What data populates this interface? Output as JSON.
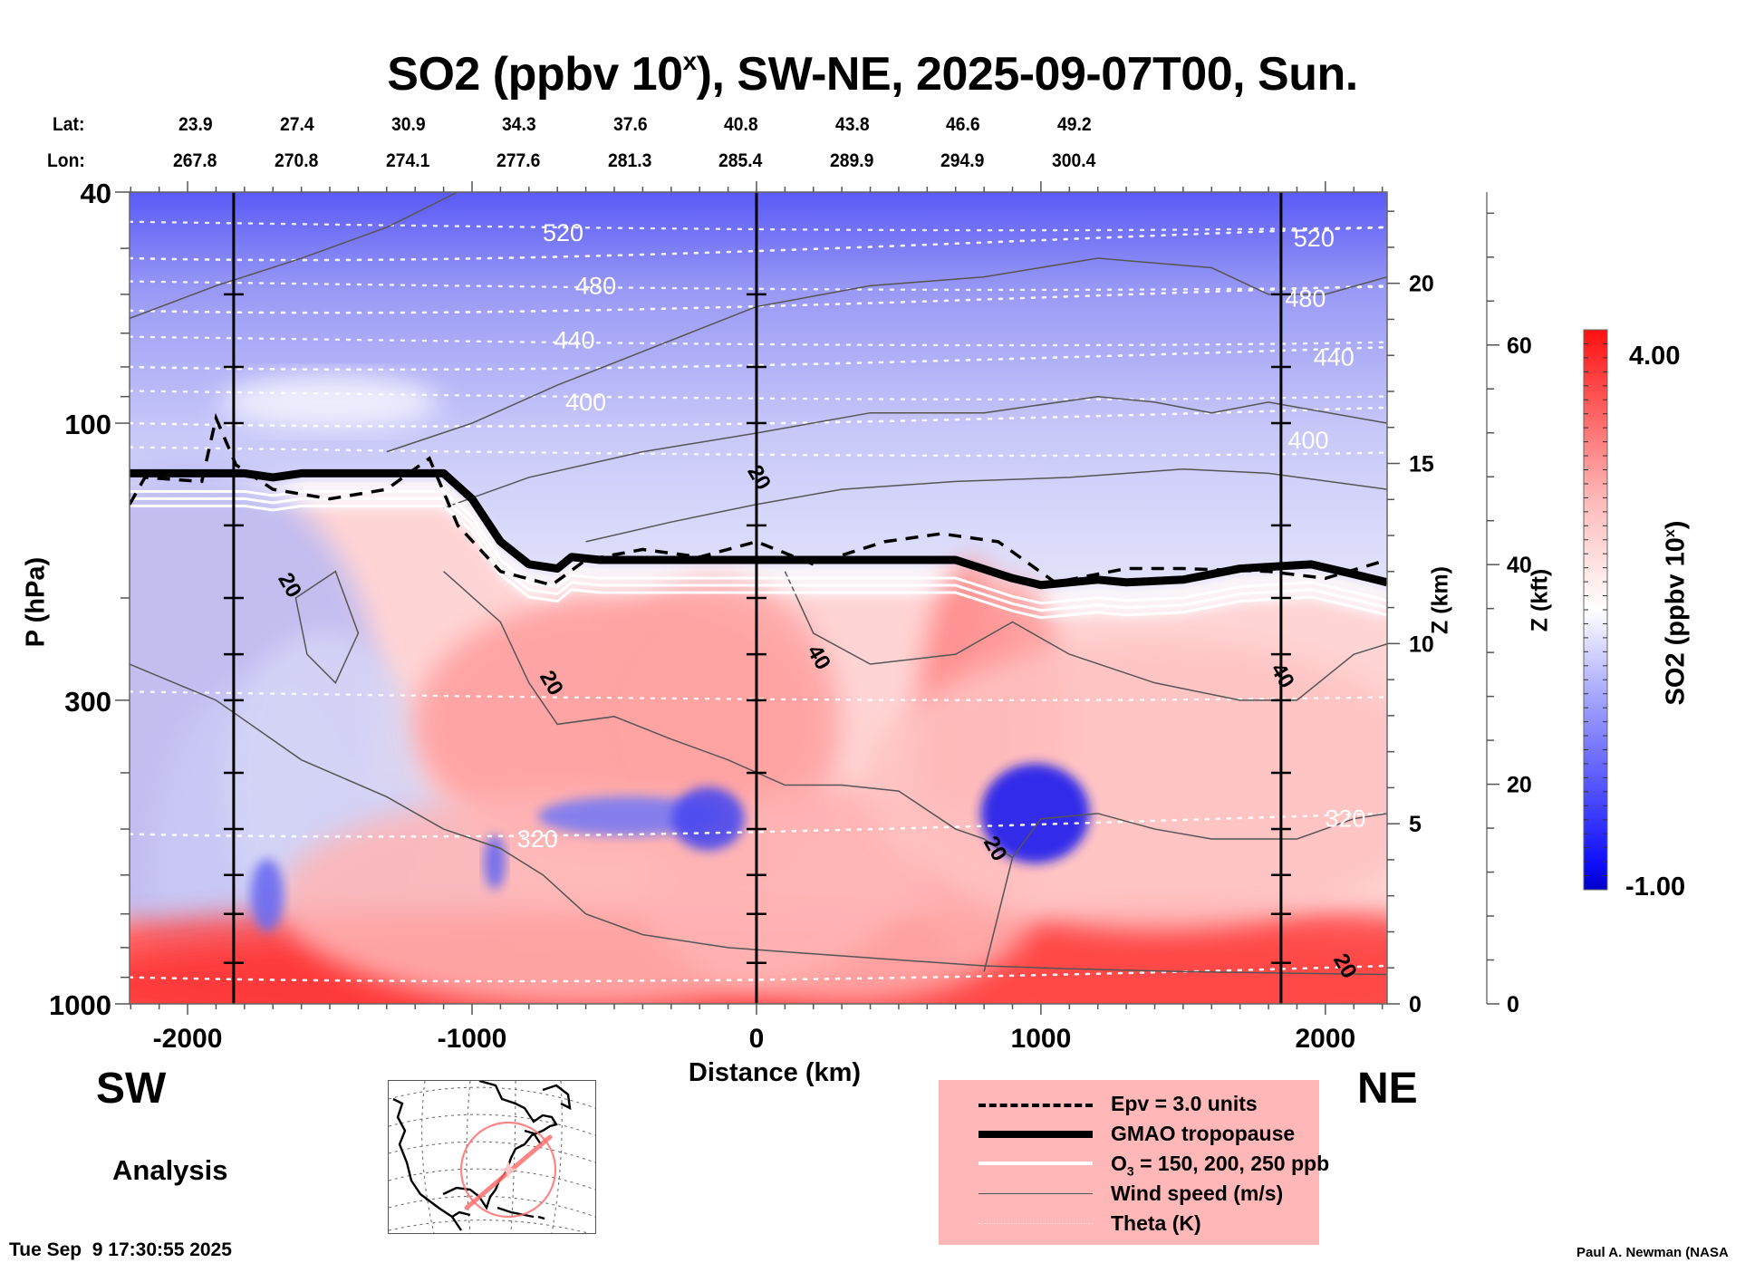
{
  "chart_data": {
    "type": "heatmap",
    "title": "SO2 (ppbv 10^x), SW-NE, 2025-09-07T00, Sun.",
    "title_parts": {
      "main": "SO2 (ppbv 10",
      "sup": "x",
      "rest": "), SW-NE, 2025-09-07T00, Sun."
    },
    "xlabel": "Distance (km)",
    "ylabel": "P (hPa)",
    "y2label": "Z (km)",
    "y3label": "Z (kft)",
    "colorbar_label": "SO2 (ppbv 10^x)",
    "colorbar_label_parts": {
      "main": "SO2 (ppbv 10",
      "sup": "x",
      "rest": ")"
    },
    "xlim": [
      -2204,
      2217
    ],
    "ylim_hpa": [
      1000,
      40
    ],
    "yscale": "log",
    "x_ticks": [
      -2000,
      -1000,
      0,
      1000,
      2000
    ],
    "x_tick_labels": [
      "-2000",
      "-1000",
      "0",
      "1000",
      "2000"
    ],
    "y_ticks_hpa": [
      40,
      100,
      300,
      1000
    ],
    "y_tick_labels": [
      "40",
      "100",
      "300",
      "1000"
    ],
    "z_km_ticks": [
      0,
      5,
      10,
      15,
      20
    ],
    "z_kft_ticks": [
      0,
      20,
      40,
      60
    ],
    "colorbar": {
      "min": -1.0,
      "max": 4.0,
      "min_label": "-1.00",
      "max_label": "4.00",
      "low_color": "#0000ff",
      "mid_color": "#ffffff",
      "high_color": "#ff0000",
      "levels": 40
    },
    "lat_labels": [
      "23.9",
      "27.4",
      "30.9",
      "34.3",
      "37.6",
      "40.8",
      "43.8",
      "46.6",
      "49.2"
    ],
    "lon_labels": [
      "267.8",
      "270.8",
      "274.1",
      "277.6",
      "281.3",
      "285.4",
      "289.9",
      "294.9",
      "300.4"
    ],
    "latlon_positions_km": [
      -2000,
      -1610,
      -1220,
      -830,
      -440,
      -50,
      340,
      730,
      1120
    ],
    "section_markers_km": [
      -1838,
      0,
      1844
    ],
    "theta_contours_K": [
      {
        "label": "520",
        "p_left": 52,
        "p_right": 46
      },
      {
        "label": "480",
        "p_left": 64,
        "p_right": 58
      },
      {
        "label": "440",
        "p_left": 80,
        "p_right": 74
      },
      {
        "label": "400",
        "p_left": 100,
        "p_right": 94
      },
      {
        "label": "320",
        "p_left": 510,
        "p_right": 470
      },
      {
        "label": "",
        "p_left": 900,
        "p_right": 860
      }
    ],
    "theta_labels": [
      {
        "text": "520",
        "x_km": -680,
        "p": 47
      },
      {
        "text": "480",
        "x_km": -565,
        "p": 58
      },
      {
        "text": "440",
        "x_km": -640,
        "p": 72
      },
      {
        "text": "400",
        "x_km": -600,
        "p": 92
      },
      {
        "text": "520",
        "x_km": 1960,
        "p": 48
      },
      {
        "text": "480",
        "x_km": 1930,
        "p": 61
      },
      {
        "text": "440",
        "x_km": 2030,
        "p": 77
      },
      {
        "text": "400",
        "x_km": 1940,
        "p": 107
      },
      {
        "text": "320",
        "x_km": -770,
        "p": 520
      },
      {
        "text": "320",
        "x_km": 2070,
        "p": 480
      }
    ],
    "wind_labels": [
      {
        "text": "20",
        "x_km": -1640,
        "p": 190
      },
      {
        "text": "20",
        "x_km": -720,
        "p": 280
      },
      {
        "text": "20",
        "x_km": 10,
        "p": 124
      },
      {
        "text": "40",
        "x_km": 220,
        "p": 253
      },
      {
        "text": "40",
        "x_km": 1850,
        "p": 272
      },
      {
        "text": "20",
        "x_km": 840,
        "p": 540
      },
      {
        "text": "20",
        "x_km": 2070,
        "p": 860
      }
    ],
    "tropopause_hpa": [
      {
        "x": -2204,
        "p": 122
      },
      {
        "x": -1800,
        "p": 122
      },
      {
        "x": -1700,
        "p": 124
      },
      {
        "x": -1600,
        "p": 122
      },
      {
        "x": -1100,
        "p": 122
      },
      {
        "x": -1000,
        "p": 135
      },
      {
        "x": -900,
        "p": 160
      },
      {
        "x": -800,
        "p": 175
      },
      {
        "x": -700,
        "p": 178
      },
      {
        "x": -650,
        "p": 170
      },
      {
        "x": -550,
        "p": 172
      },
      {
        "x": 0,
        "p": 172
      },
      {
        "x": 700,
        "p": 172
      },
      {
        "x": 900,
        "p": 185
      },
      {
        "x": 1000,
        "p": 190
      },
      {
        "x": 1200,
        "p": 186
      },
      {
        "x": 1300,
        "p": 188
      },
      {
        "x": 1500,
        "p": 186
      },
      {
        "x": 1700,
        "p": 178
      },
      {
        "x": 1950,
        "p": 175
      },
      {
        "x": 2100,
        "p": 182
      },
      {
        "x": 2217,
        "p": 188
      }
    ],
    "epv_hpa": [
      {
        "x": -2204,
        "p": 138
      },
      {
        "x": -2150,
        "p": 124
      },
      {
        "x": -1950,
        "p": 126
      },
      {
        "x": -1900,
        "p": 98
      },
      {
        "x": -1830,
        "p": 118
      },
      {
        "x": -1700,
        "p": 130
      },
      {
        "x": -1500,
        "p": 135
      },
      {
        "x": -1300,
        "p": 130
      },
      {
        "x": -1150,
        "p": 115
      },
      {
        "x": -1050,
        "p": 150
      },
      {
        "x": -900,
        "p": 180
      },
      {
        "x": -720,
        "p": 190
      },
      {
        "x": -600,
        "p": 172
      },
      {
        "x": -400,
        "p": 165
      },
      {
        "x": -200,
        "p": 170
      },
      {
        "x": 0,
        "p": 160
      },
      {
        "x": 200,
        "p": 175
      },
      {
        "x": 450,
        "p": 160
      },
      {
        "x": 650,
        "p": 155
      },
      {
        "x": 850,
        "p": 160
      },
      {
        "x": 1050,
        "p": 188
      },
      {
        "x": 1300,
        "p": 178
      },
      {
        "x": 1500,
        "p": 178
      },
      {
        "x": 1800,
        "p": 180
      },
      {
        "x": 2000,
        "p": 185
      },
      {
        "x": 2217,
        "p": 172
      }
    ],
    "so2_field_description": "Negative (blue) values in stratosphere above tropopause; positive (red) values in troposphere with strongest red near surface (-1300 to 1700 km); blue pockets near 500 hPa around -500 to 0 km and 900-1100 km",
    "wind_speed_units": "m/s",
    "theta_units": "K"
  },
  "lat_prefix": "Lat:",
  "lon_prefix": "Lon:",
  "direction_left": "SW",
  "direction_right": "NE",
  "product_label": "Analysis",
  "timestamp": "Tue Sep  9 17:30:55 2025",
  "credit": "Paul A. Newman (NASA",
  "legend": {
    "items": [
      {
        "style": "dashed",
        "label": "Epv = 3.0 units"
      },
      {
        "style": "thick",
        "label": "GMAO tropopause"
      },
      {
        "style": "white",
        "label_main": "O",
        "label_sub": "3",
        "label_rest": " = 150, 200, 250 ppb"
      },
      {
        "style": "thin",
        "label": "Wind speed (m/s)"
      },
      {
        "style": "dotted",
        "label": "Theta (K)"
      }
    ],
    "background": "#ffb7b7"
  },
  "inset_map": {
    "region": "North America / Eastern US",
    "track_color": "#ff7070",
    "description": "Section track SW-NE over eastern United States with range circle"
  }
}
